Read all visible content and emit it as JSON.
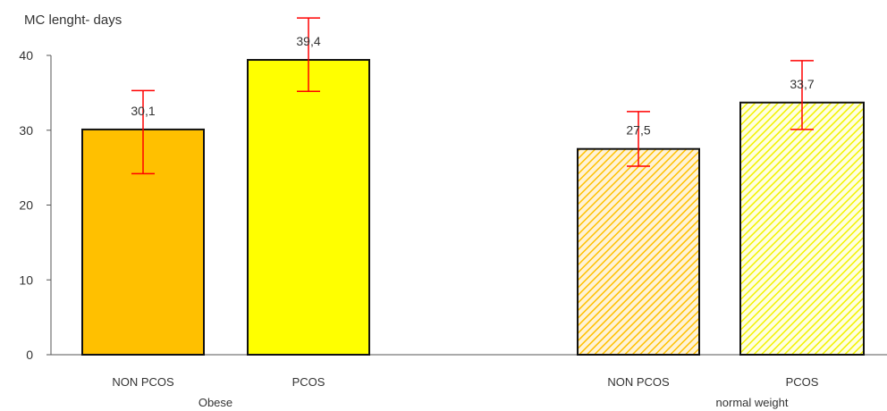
{
  "chart_data": {
    "type": "bar",
    "title": "",
    "ylabel": "MC lenght- days",
    "xlabel": "",
    "ylim": [
      0,
      40
    ],
    "yticks": [
      0,
      10,
      20,
      30,
      40
    ],
    "grid": false,
    "groups": [
      {
        "label": "Obese",
        "bars": [
          {
            "category": "NON PCOS",
            "value": 30.1,
            "label": "30,1",
            "err_low": 24.2,
            "err_high": 35.3,
            "color": "#FFC000",
            "pattern": "solid"
          },
          {
            "category": "PCOS",
            "value": 39.4,
            "label": "39,4",
            "err_low": 35.2,
            "err_high": 45.0,
            "color": "#FFFF00",
            "pattern": "solid"
          }
        ]
      },
      {
        "label": "normal weight",
        "bars": [
          {
            "category": "NON PCOS",
            "value": 27.5,
            "label": "27,5",
            "err_low": 25.2,
            "err_high": 32.5,
            "color": "#FFC000",
            "pattern": "hatched"
          },
          {
            "category": "PCOS",
            "value": 33.7,
            "label": "33,7",
            "err_low": 30.1,
            "err_high": 39.3,
            "color": "#FFFF00",
            "pattern": "hatched"
          }
        ]
      }
    ],
    "error_bar_color": "#FF0000"
  }
}
